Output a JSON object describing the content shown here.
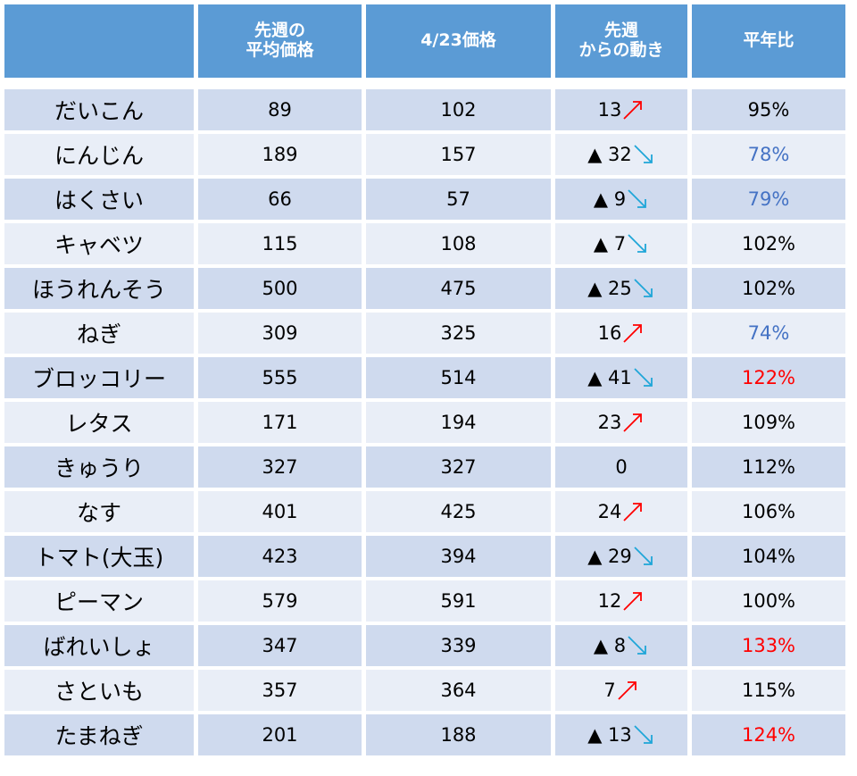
{
  "table": {
    "headers": [
      "先週の\n平均価格",
      "4/23価格",
      "先週\nからの動き",
      "平年比"
    ],
    "rows": [
      [
        "だいこん",
        89,
        102,
        "13",
        "95%"
      ],
      [
        "にんじん",
        189,
        157,
        "▲ 32",
        "78%"
      ],
      [
        "はくさい",
        66,
        57,
        "▲ 9",
        "79%"
      ],
      [
        "キャベツ",
        115,
        108,
        "▲ 7",
        "102%"
      ],
      [
        "ほうれんそう",
        500,
        475,
        "▲ 25",
        "102%"
      ],
      [
        "ねぎ",
        309,
        325,
        "16",
        "74%"
      ],
      [
        "ブロッコリー",
        555,
        514,
        "▲ 41",
        "122%"
      ],
      [
        "レタス",
        171,
        194,
        "23",
        "109%"
      ],
      [
        "きゅうり",
        327,
        327,
        "0",
        "112%"
      ],
      [
        "なす",
        401,
        425,
        "24",
        "106%"
      ],
      [
        "トマト(大玉)",
        423,
        394,
        "▲ 29",
        "104%"
      ],
      [
        "ピーマン",
        579,
        591,
        "12",
        "100%"
      ],
      [
        "ばれいしょ",
        347,
        339,
        "▲ 8",
        "133%"
      ],
      [
        "さといも",
        357,
        364,
        "7",
        "115%"
      ],
      [
        "たまねぎ",
        201,
        188,
        "▲ 13",
        "124%"
      ]
    ],
    "trend": [
      "up",
      "down",
      "down",
      "down",
      "down",
      "up",
      "down",
      "up",
      null,
      "up",
      "down",
      "up",
      "down",
      "up",
      "down"
    ],
    "ratio_color": [
      "#000000",
      "#4472c4",
      "#4472c4",
      "#000000",
      "#000000",
      "#4472c4",
      "#ff0000",
      "#000000",
      "#000000",
      "#000000",
      "#000000",
      "#000000",
      "#ff0000",
      "#000000",
      "#ff0000"
    ]
  }
}
